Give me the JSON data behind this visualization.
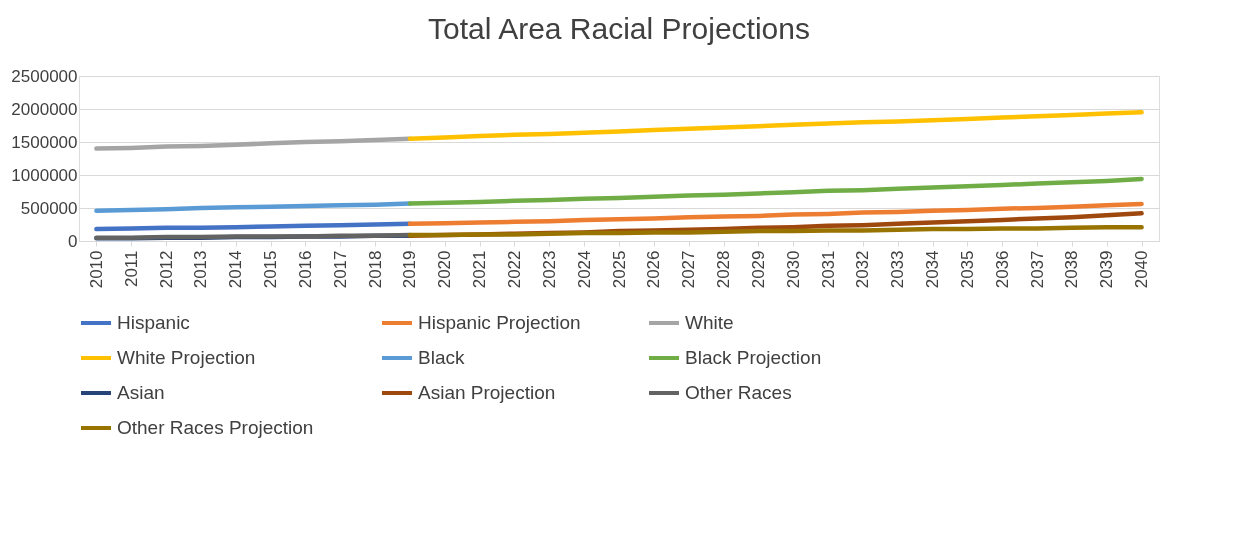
{
  "chart_data": {
    "type": "line",
    "title": "Total Area Racial Projections",
    "categories": [
      "2010",
      "2011",
      "2012",
      "2013",
      "2014",
      "2015",
      "2016",
      "2017",
      "2018",
      "2019",
      "2020",
      "2021",
      "2022",
      "2023",
      "2024",
      "2025",
      "2026",
      "2027",
      "2028",
      "2029",
      "2030",
      "2031",
      "2032",
      "2033",
      "2034",
      "2035",
      "2036",
      "2037",
      "2038",
      "2039",
      "2040"
    ],
    "ylim": [
      0,
      2500000
    ],
    "yticks": [
      0,
      500000,
      1000000,
      1500000,
      2000000,
      2500000
    ],
    "grid": "y",
    "legend": "bottom",
    "line_style": "solid",
    "marker": "none",
    "series": [
      {
        "name": "Hispanic",
        "color": "#4472c4",
        "values": [
          180000,
          190000,
          200000,
          200000,
          210000,
          220000,
          230000,
          240000,
          250000,
          260000,
          null,
          null,
          null,
          null,
          null,
          null,
          null,
          null,
          null,
          null,
          null,
          null,
          null,
          null,
          null,
          null,
          null,
          null,
          null,
          null,
          null
        ]
      },
      {
        "name": "Hispanic Projection",
        "color": "#ed7d31",
        "values": [
          null,
          null,
          null,
          null,
          null,
          null,
          null,
          null,
          null,
          260000,
          270000,
          280000,
          290000,
          300000,
          320000,
          330000,
          340000,
          360000,
          370000,
          380000,
          400000,
          410000,
          430000,
          440000,
          460000,
          470000,
          490000,
          500000,
          520000,
          540000,
          560000
        ]
      },
      {
        "name": "White",
        "color": "#a5a5a5",
        "values": [
          1400000,
          1410000,
          1430000,
          1440000,
          1460000,
          1480000,
          1500000,
          1510000,
          1530000,
          1550000,
          null,
          null,
          null,
          null,
          null,
          null,
          null,
          null,
          null,
          null,
          null,
          null,
          null,
          null,
          null,
          null,
          null,
          null,
          null,
          null,
          null
        ]
      },
      {
        "name": "White Projection",
        "color": "#ffc000",
        "values": [
          null,
          null,
          null,
          null,
          null,
          null,
          null,
          null,
          null,
          1550000,
          1570000,
          1590000,
          1610000,
          1620000,
          1640000,
          1660000,
          1680000,
          1700000,
          1720000,
          1740000,
          1760000,
          1780000,
          1800000,
          1810000,
          1830000,
          1850000,
          1870000,
          1890000,
          1910000,
          1930000,
          1950000
        ]
      },
      {
        "name": "Black",
        "color": "#5b9bd5",
        "values": [
          460000,
          470000,
          480000,
          500000,
          510000,
          520000,
          530000,
          540000,
          550000,
          570000,
          null,
          null,
          null,
          null,
          null,
          null,
          null,
          null,
          null,
          null,
          null,
          null,
          null,
          null,
          null,
          null,
          null,
          null,
          null,
          null,
          null
        ]
      },
      {
        "name": "Black Projection",
        "color": "#70ad47",
        "values": [
          null,
          null,
          null,
          null,
          null,
          null,
          null,
          null,
          null,
          570000,
          580000,
          590000,
          610000,
          620000,
          640000,
          650000,
          670000,
          690000,
          700000,
          720000,
          740000,
          760000,
          770000,
          790000,
          810000,
          830000,
          850000,
          870000,
          890000,
          910000,
          940000
        ]
      },
      {
        "name": "Asian",
        "color": "#264478",
        "values": [
          40000,
          40000,
          50000,
          50000,
          60000,
          60000,
          70000,
          70000,
          80000,
          80000,
          null,
          null,
          null,
          null,
          null,
          null,
          null,
          null,
          null,
          null,
          null,
          null,
          null,
          null,
          null,
          null,
          null,
          null,
          null,
          null,
          null
        ]
      },
      {
        "name": "Asian Projection",
        "color": "#9e480e",
        "values": [
          null,
          null,
          null,
          null,
          null,
          null,
          null,
          null,
          null,
          80000,
          90000,
          100000,
          110000,
          120000,
          130000,
          150000,
          160000,
          170000,
          180000,
          200000,
          210000,
          230000,
          240000,
          260000,
          280000,
          300000,
          320000,
          340000,
          360000,
          390000,
          420000
        ]
      },
      {
        "name": "Other Races",
        "color": "#636363",
        "values": [
          50000,
          50000,
          60000,
          60000,
          70000,
          70000,
          70000,
          80000,
          80000,
          90000,
          null,
          null,
          null,
          null,
          null,
          null,
          null,
          null,
          null,
          null,
          null,
          null,
          null,
          null,
          null,
          null,
          null,
          null,
          null,
          null,
          null
        ]
      },
      {
        "name": "Other Races Projection",
        "color": "#997300",
        "values": [
          null,
          null,
          null,
          null,
          null,
          null,
          null,
          null,
          null,
          90000,
          90000,
          100000,
          100000,
          110000,
          120000,
          120000,
          130000,
          130000,
          140000,
          150000,
          150000,
          160000,
          160000,
          170000,
          180000,
          180000,
          190000,
          190000,
          200000,
          210000,
          210000
        ]
      }
    ]
  }
}
